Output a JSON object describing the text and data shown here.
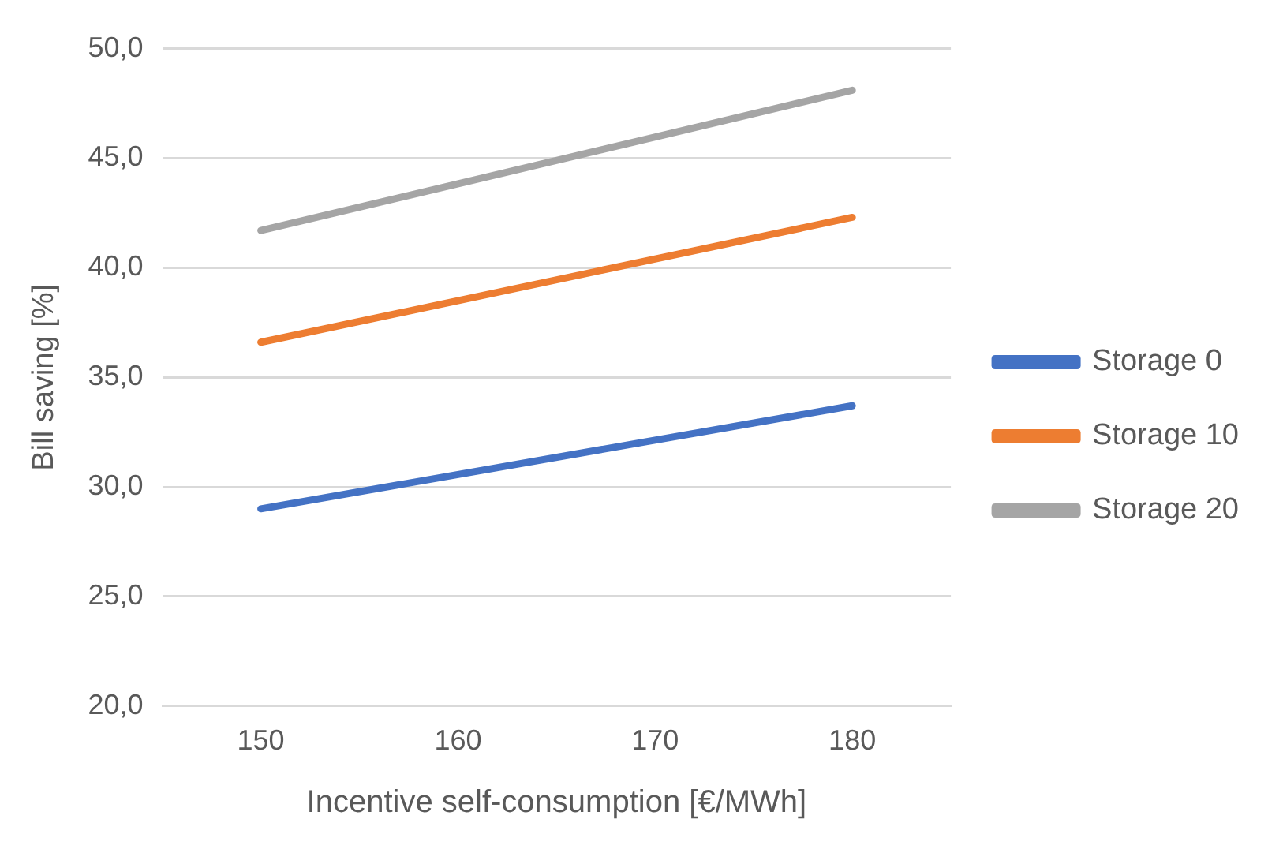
{
  "chart_data": {
    "type": "line",
    "xlabel": "Incentive self-consumption [€/MWh]",
    "ylabel": "Bill saving [%]",
    "categories": [
      "150",
      "160",
      "170",
      "180"
    ],
    "series": [
      {
        "name": "Storage 0",
        "color": "#4472c4",
        "values": [
          29.0,
          null,
          null,
          33.7
        ]
      },
      {
        "name": "Storage 10",
        "color": "#ed7d31",
        "values": [
          36.6,
          null,
          null,
          42.3
        ]
      },
      {
        "name": "Storage 20",
        "color": "#a5a5a5",
        "values": [
          41.7,
          null,
          null,
          48.1
        ]
      }
    ],
    "ylim": [
      20,
      50
    ],
    "yticks": [
      {
        "value": 20,
        "label": "20,0"
      },
      {
        "value": 25,
        "label": "25,0"
      },
      {
        "value": 30,
        "label": "30,0"
      },
      {
        "value": 35,
        "label": "35,0"
      },
      {
        "value": 40,
        "label": "40,0"
      },
      {
        "value": 45,
        "label": "45,0"
      },
      {
        "value": 50,
        "label": "50,0"
      }
    ],
    "grid": "y",
    "legend": "right",
    "marker": "none",
    "line_style": "solid"
  }
}
